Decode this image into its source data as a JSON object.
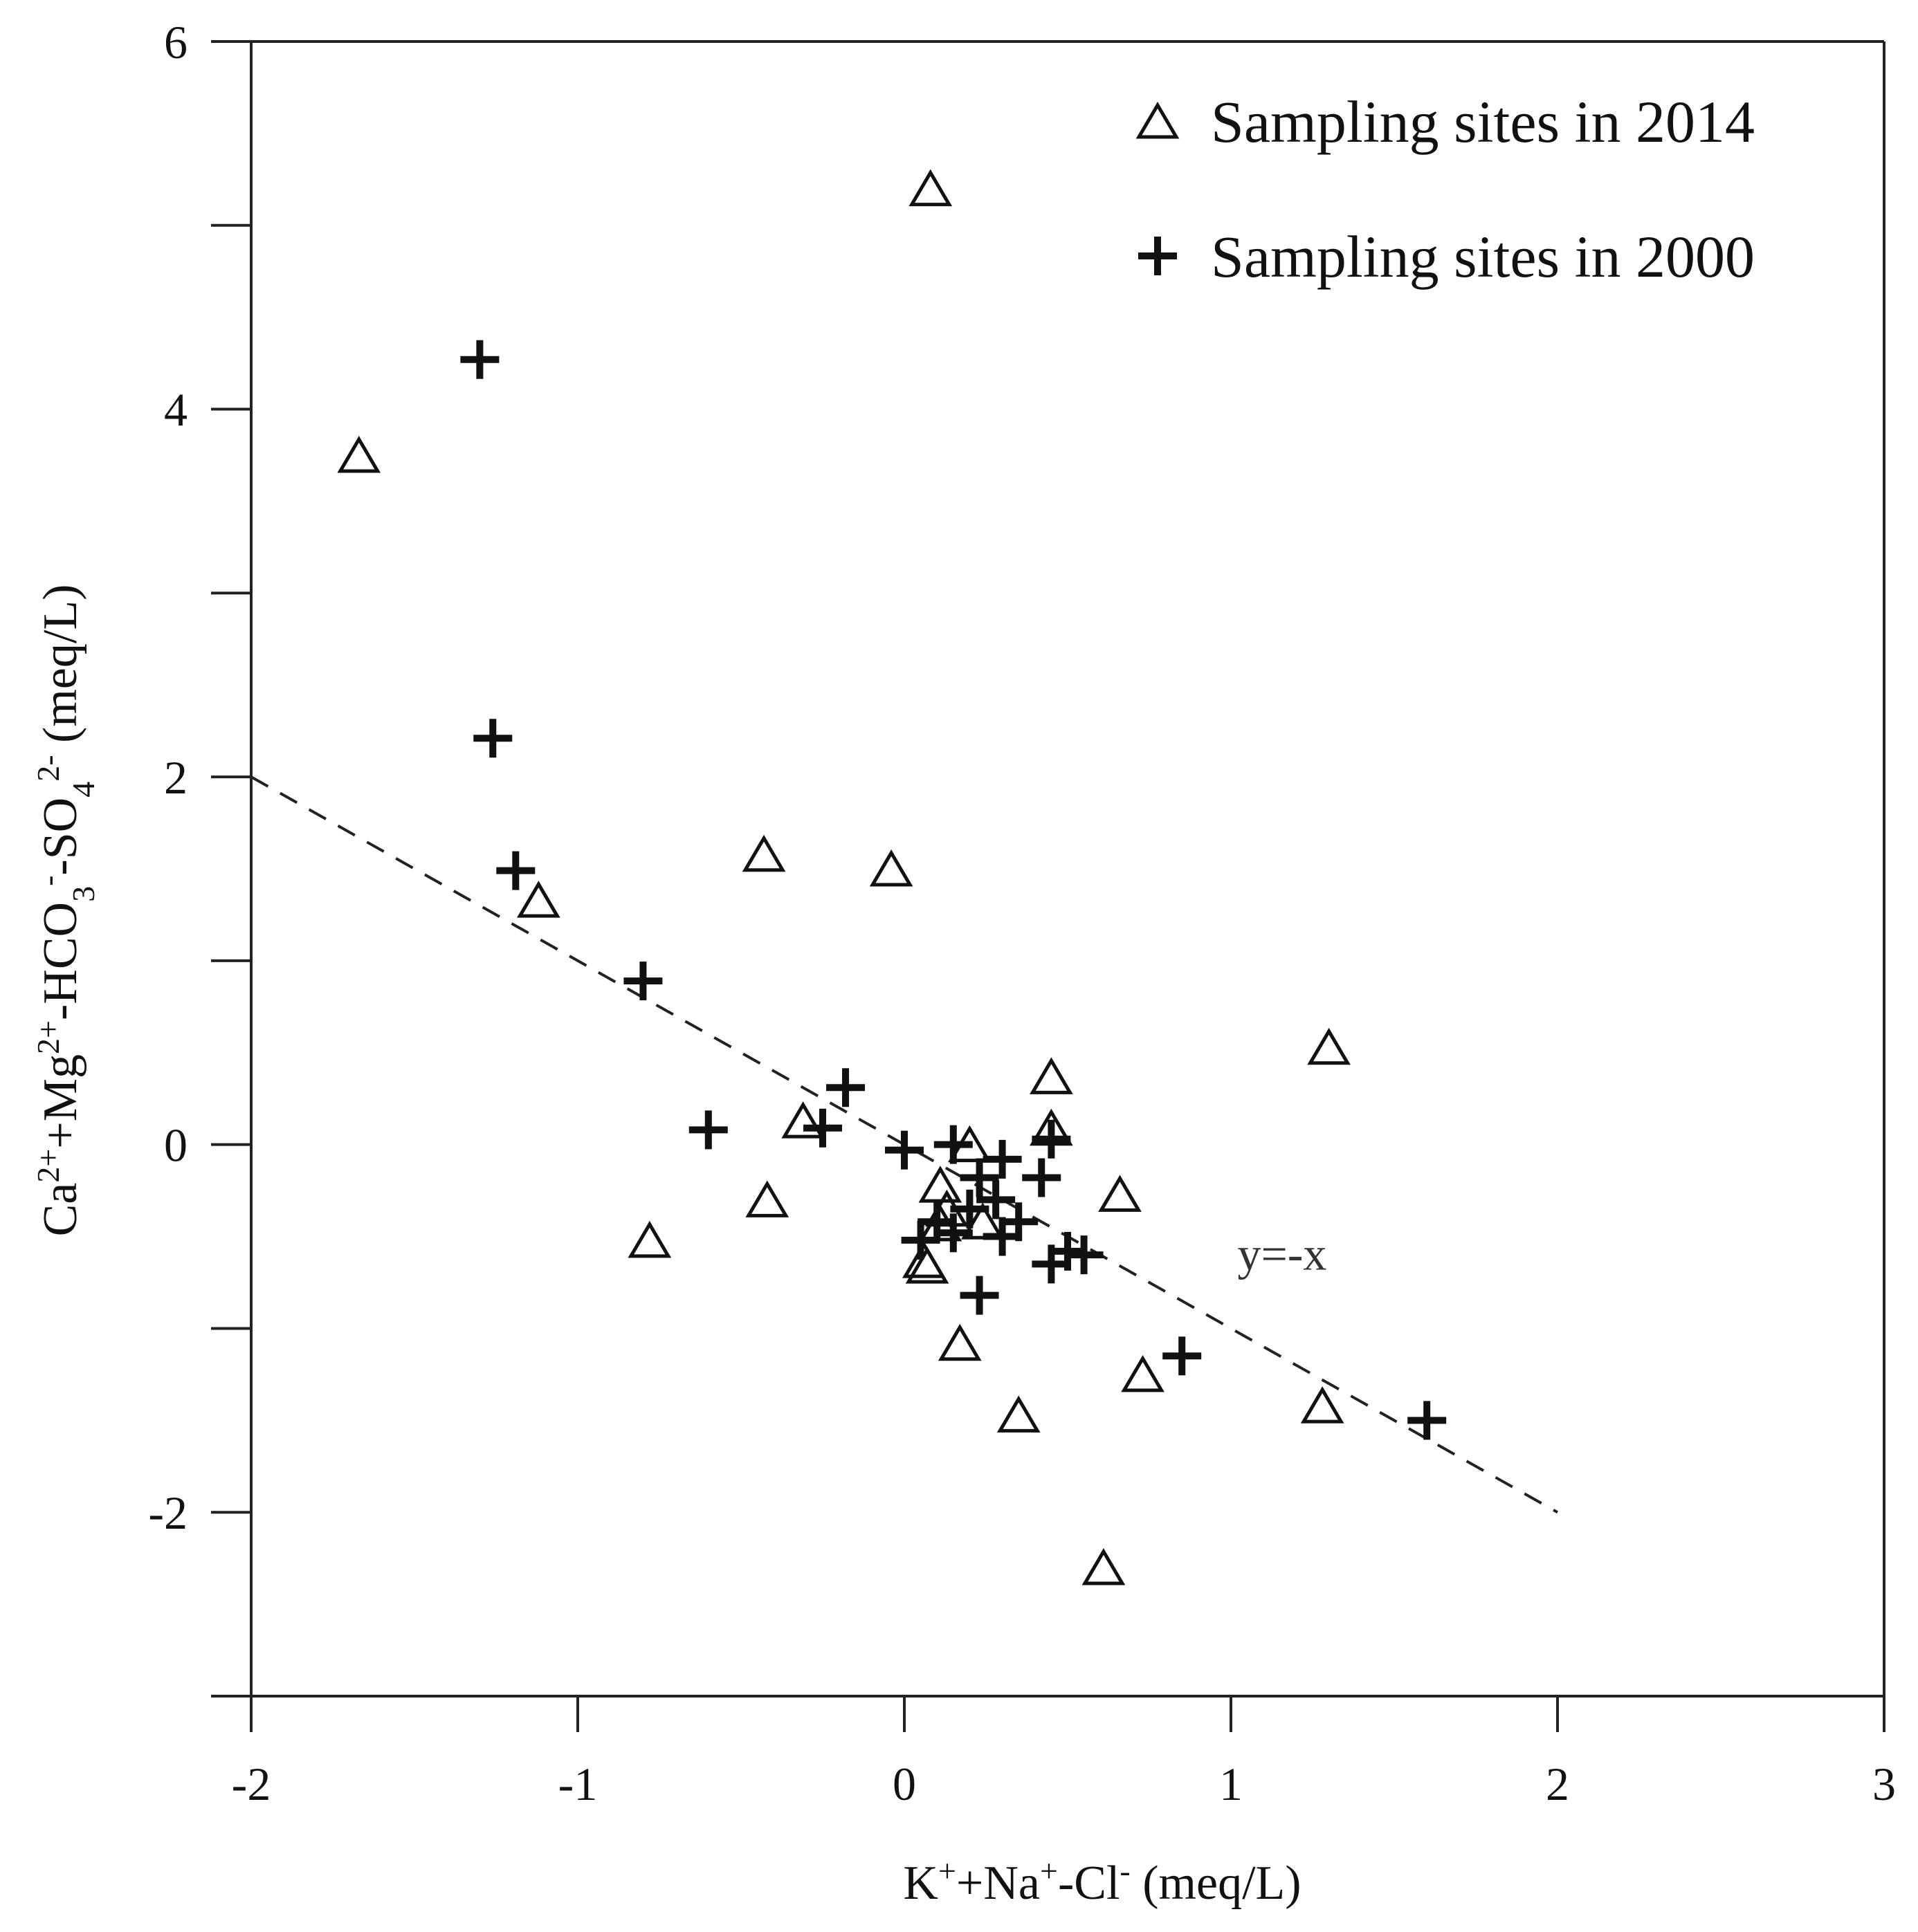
{
  "chart_data": {
    "type": "scatter",
    "title": "",
    "xlabel": {
      "base": "K",
      "parts": [
        [
          "K",
          ""
        ],
        [
          "+",
          "sup"
        ],
        [
          "+Na",
          ""
        ],
        [
          "+",
          "sup"
        ],
        [
          "-Cl",
          ""
        ],
        [
          "-",
          "sup"
        ],
        [
          " (meq/L)",
          ""
        ]
      ]
    },
    "ylabel": {
      "parts": [
        [
          "Ca",
          ""
        ],
        [
          "2+",
          "sup"
        ],
        [
          "+Mg",
          ""
        ],
        [
          "2+",
          "sup"
        ],
        [
          "-HCO",
          ""
        ],
        [
          "3",
          "sub"
        ],
        [
          "-",
          "sup"
        ],
        [
          "-SO",
          ""
        ],
        [
          "4",
          "sub"
        ],
        [
          "2-",
          "sup"
        ],
        [
          " (meq/L)",
          ""
        ]
      ]
    },
    "xlabel_text": "K+Na+-Cl- (meq/L)",
    "ylabel_text": "Ca2++Mg2+-HCO3--SO42- (meq/L)",
    "xlim": [
      -2,
      3
    ],
    "ylim": [
      -3,
      6
    ],
    "xticks": [
      -2,
      -1,
      0,
      1,
      2,
      3
    ],
    "xtick_labels": [
      "-2",
      "-1",
      "0",
      "1",
      "2",
      "3"
    ],
    "yticks": [
      -3,
      -2,
      -1,
      0,
      1,
      2,
      3,
      4,
      5,
      6
    ],
    "ytick_labels": [
      "",
      "-2",
      "",
      "0",
      "",
      "2",
      "",
      "4",
      "",
      "6"
    ],
    "legend_position": "top-right",
    "reference_line": {
      "label": "y=-x",
      "slope": -1,
      "intercept": 0,
      "x_range": [
        -2,
        2
      ],
      "style": "dashed",
      "label_at": [
        1.02,
        -0.68
      ]
    },
    "series": [
      {
        "name": "Sampling sites in 2014",
        "marker": "triangle-open",
        "points": [
          [
            0.08,
            5.2
          ],
          [
            -1.67,
            3.75
          ],
          [
            -0.43,
            1.58
          ],
          [
            -0.04,
            1.5
          ],
          [
            -1.12,
            1.33
          ],
          [
            1.3,
            0.53
          ],
          [
            0.45,
            0.37
          ],
          [
            -0.31,
            0.13
          ],
          [
            0.45,
            0.09
          ],
          [
            0.2,
            0.0
          ],
          [
            0.11,
            -0.22
          ],
          [
            0.66,
            -0.27
          ],
          [
            -0.42,
            -0.3
          ],
          [
            0.13,
            -0.35
          ],
          [
            0.24,
            -0.42
          ],
          [
            -0.78,
            -0.52
          ],
          [
            0.11,
            -0.43
          ],
          [
            0.06,
            -0.63
          ],
          [
            0.07,
            -0.66
          ],
          [
            0.17,
            -1.08
          ],
          [
            0.73,
            -1.25
          ],
          [
            1.28,
            -1.42
          ],
          [
            0.35,
            -1.47
          ],
          [
            0.61,
            -2.3
          ]
        ]
      },
      {
        "name": "Sampling sites in 2000",
        "marker": "plus",
        "points": [
          [
            -1.3,
            4.27
          ],
          [
            -1.26,
            2.21
          ],
          [
            -1.19,
            1.49
          ],
          [
            -0.8,
            0.89
          ],
          [
            -0.18,
            0.31
          ],
          [
            -0.6,
            0.08
          ],
          [
            -0.25,
            0.09
          ],
          [
            0.0,
            -0.03
          ],
          [
            0.15,
            0.0
          ],
          [
            0.3,
            -0.08
          ],
          [
            0.45,
            0.03
          ],
          [
            0.23,
            -0.18
          ],
          [
            0.42,
            -0.18
          ],
          [
            0.28,
            -0.3
          ],
          [
            0.2,
            -0.35
          ],
          [
            0.35,
            -0.42
          ],
          [
            0.1,
            -0.42
          ],
          [
            0.05,
            -0.52
          ],
          [
            0.15,
            -0.48
          ],
          [
            0.3,
            -0.5
          ],
          [
            0.5,
            -0.58
          ],
          [
            0.45,
            -0.65
          ],
          [
            0.55,
            -0.6
          ],
          [
            0.23,
            -0.82
          ],
          [
            0.85,
            -1.15
          ],
          [
            1.6,
            -1.5
          ]
        ]
      }
    ]
  }
}
